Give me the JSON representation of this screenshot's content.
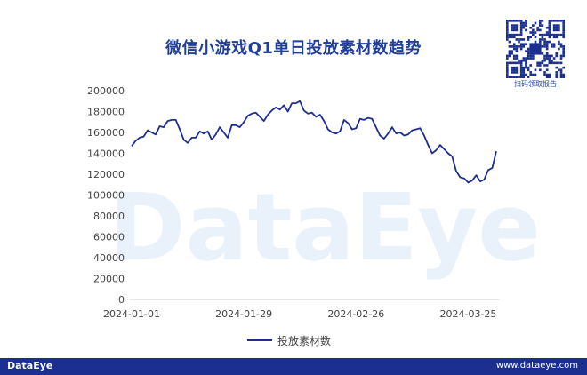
{
  "title": "微信小游戏Q1单日投放素材数趋势",
  "qr_caption": "扫码领取报告",
  "watermark": "DataEye",
  "footer": {
    "logo": "DataEye",
    "url": "www.dataeye.com"
  },
  "colors": {
    "series": "#1f2f8f",
    "title": "#1f3f99",
    "footer_bg": "#1a2f8f",
    "watermark": "#e9f1fb"
  },
  "chart_data": {
    "type": "line",
    "title": "微信小游戏Q1单日投放素材数趋势",
    "xlabel": "",
    "ylabel": "",
    "ylim": [
      0,
      200000
    ],
    "y_ticks": [
      0,
      20000,
      40000,
      60000,
      80000,
      100000,
      120000,
      140000,
      160000,
      180000,
      200000
    ],
    "x_tick_labels": [
      "2024-01-01",
      "2024-01-29",
      "2024-02-26",
      "2024-03-25"
    ],
    "x_tick_indices": [
      0,
      28,
      56,
      84
    ],
    "grid": false,
    "legend": "bottom",
    "series": [
      {
        "name": "投放素材数",
        "values": [
          147000,
          152000,
          155000,
          156000,
          162000,
          160000,
          158000,
          166000,
          165000,
          171000,
          172000,
          172000,
          163000,
          153000,
          150000,
          155000,
          155000,
          161000,
          159000,
          161000,
          153000,
          158000,
          165000,
          160000,
          155000,
          167000,
          167000,
          165000,
          170000,
          176000,
          178000,
          179000,
          175000,
          171000,
          177000,
          181000,
          184000,
          182000,
          186000,
          180000,
          188000,
          188000,
          190000,
          181000,
          178000,
          179000,
          175000,
          177000,
          171000,
          163000,
          160000,
          159000,
          161000,
          172000,
          169000,
          163000,
          164000,
          173000,
          172000,
          174000,
          173000,
          165000,
          157000,
          154000,
          159000,
          165000,
          159000,
          160000,
          157000,
          158000,
          162000,
          163000,
          164000,
          157000,
          148000,
          140000,
          143000,
          148000,
          144000,
          140000,
          137000,
          123000,
          117000,
          116000,
          112000,
          114000,
          119000,
          113000,
          115000,
          124000,
          126000,
          142000
        ]
      }
    ]
  }
}
